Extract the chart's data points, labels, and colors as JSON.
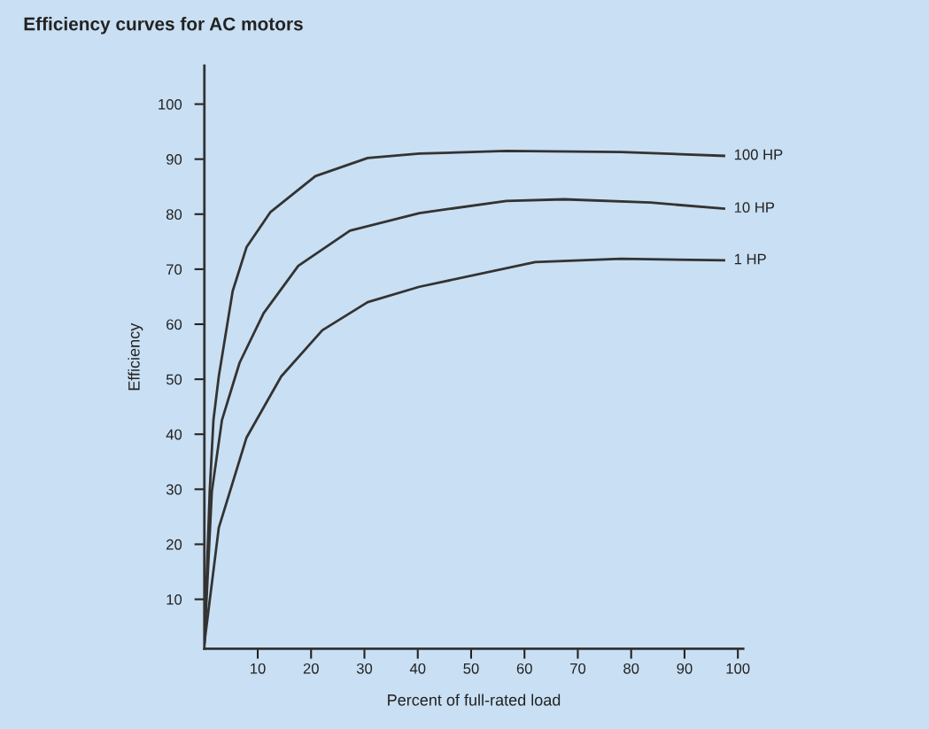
{
  "chart_data": {
    "type": "line",
    "title": "Efficiency curves for AC motors",
    "xlabel": "Percent of full-rated load",
    "ylabel": "Efficiency",
    "xlim": [
      0,
      101
    ],
    "ylim": [
      1,
      107
    ],
    "xticks": [
      10,
      20,
      30,
      40,
      50,
      60,
      70,
      80,
      90,
      100
    ],
    "yticks": [
      10,
      20,
      30,
      40,
      50,
      60,
      70,
      80,
      90,
      100
    ],
    "grid": false,
    "legend": false,
    "marker": "none",
    "line_style": "solid",
    "series": [
      {
        "name": "100 HP",
        "color": "#333333",
        "x": [
          0,
          1.0,
          1.7,
          2.7,
          5.3,
          7.9,
          12.4,
          20.8,
          30.6,
          40.3,
          56.6,
          78.1,
          97.4
        ],
        "values": [
          2,
          29.6,
          42.6,
          50.5,
          66,
          74,
          80.4,
          86.9,
          90.2,
          91.0,
          91.5,
          91.3,
          90.6
        ]
      },
      {
        "name": "10 HP",
        "color": "#333333",
        "x": [
          0,
          1.4,
          3.3,
          6.6,
          11.1,
          17.6,
          27.3,
          40.3,
          56.6,
          67.4,
          83.6,
          97.4
        ],
        "values": [
          2,
          29.6,
          42.6,
          53,
          62,
          70.6,
          77,
          80.2,
          82.4,
          82.7,
          82.1,
          81.0
        ]
      },
      {
        "name": "1 HP",
        "color": "#333333",
        "x": [
          0,
          2.7,
          7.9,
          14.4,
          22.1,
          30.6,
          40.3,
          62,
          78.1,
          97.4
        ],
        "values": [
          2,
          23,
          39.4,
          50.5,
          58.9,
          64,
          66.8,
          71.3,
          71.9,
          71.6
        ]
      }
    ]
  }
}
